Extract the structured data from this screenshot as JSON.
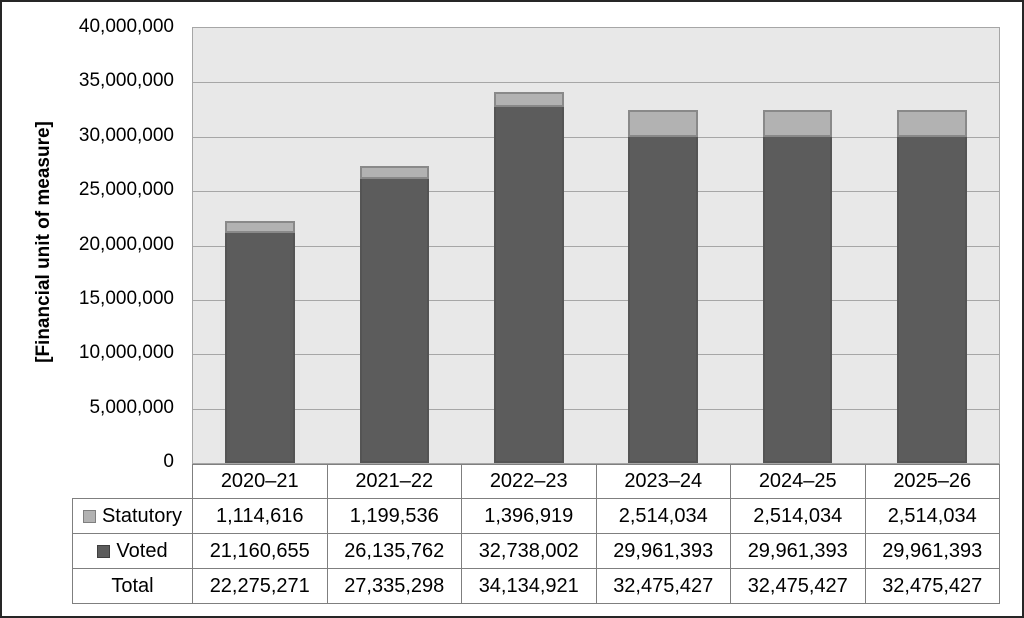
{
  "chart_data": {
    "type": "bar",
    "stacked": true,
    "ylabel": "[Financial unit of measure]",
    "categories": [
      "2020–21",
      "2021–22",
      "2022–23",
      "2023–24",
      "2024–25",
      "2025–26"
    ],
    "series": [
      {
        "name": "Statutory",
        "color": "#b2b2b2",
        "values": [
          1114616,
          1199536,
          1396919,
          2514034,
          2514034,
          2514034
        ]
      },
      {
        "name": "Voted",
        "color": "#5c5c5c",
        "values": [
          21160655,
          26135762,
          32738002,
          29961393,
          29961393,
          29961393
        ]
      }
    ],
    "totals": [
      22275271,
      27335298,
      34134921,
      32475427,
      32475427,
      32475427
    ],
    "ylim": [
      0,
      40000000
    ],
    "ytick_step": 5000000,
    "ytick_labels": [
      "40,000,000",
      "35,000,000",
      "30,000,000",
      "25,000,000",
      "20,000,000",
      "15,000,000",
      "10,000,000",
      "5,000,000",
      "0"
    ],
    "grid": true,
    "legend_position": "table-left"
  },
  "table": {
    "rows": [
      {
        "label": "Statutory",
        "swatch": "#b2b2b2",
        "swatch_border": "#7f7f7f",
        "values": [
          "1,114,616",
          "1,199,536",
          "1,396,919",
          "2,514,034",
          "2,514,034",
          "2,514,034"
        ]
      },
      {
        "label": "Voted",
        "swatch": "#5c5c5c",
        "swatch_border": "#3f3f3f",
        "values": [
          "21,160,655",
          "26,135,762",
          "32,738,002",
          "29,961,393",
          "29,961,393",
          "29,961,393"
        ]
      },
      {
        "label": "Total",
        "swatch": null,
        "swatch_border": null,
        "values": [
          "22,275,271",
          "27,335,298",
          "34,134,921",
          "32,475,427",
          "32,475,427",
          "32,475,427"
        ]
      }
    ]
  },
  "colors": {
    "plot_background": "#e8e8e8",
    "gridline": "#a6a6a6",
    "table_border": "#7f7f7f",
    "frame_border": "#262626",
    "voted_fill": "#5c5c5c",
    "statutory_fill": "#b2b2b2"
  }
}
